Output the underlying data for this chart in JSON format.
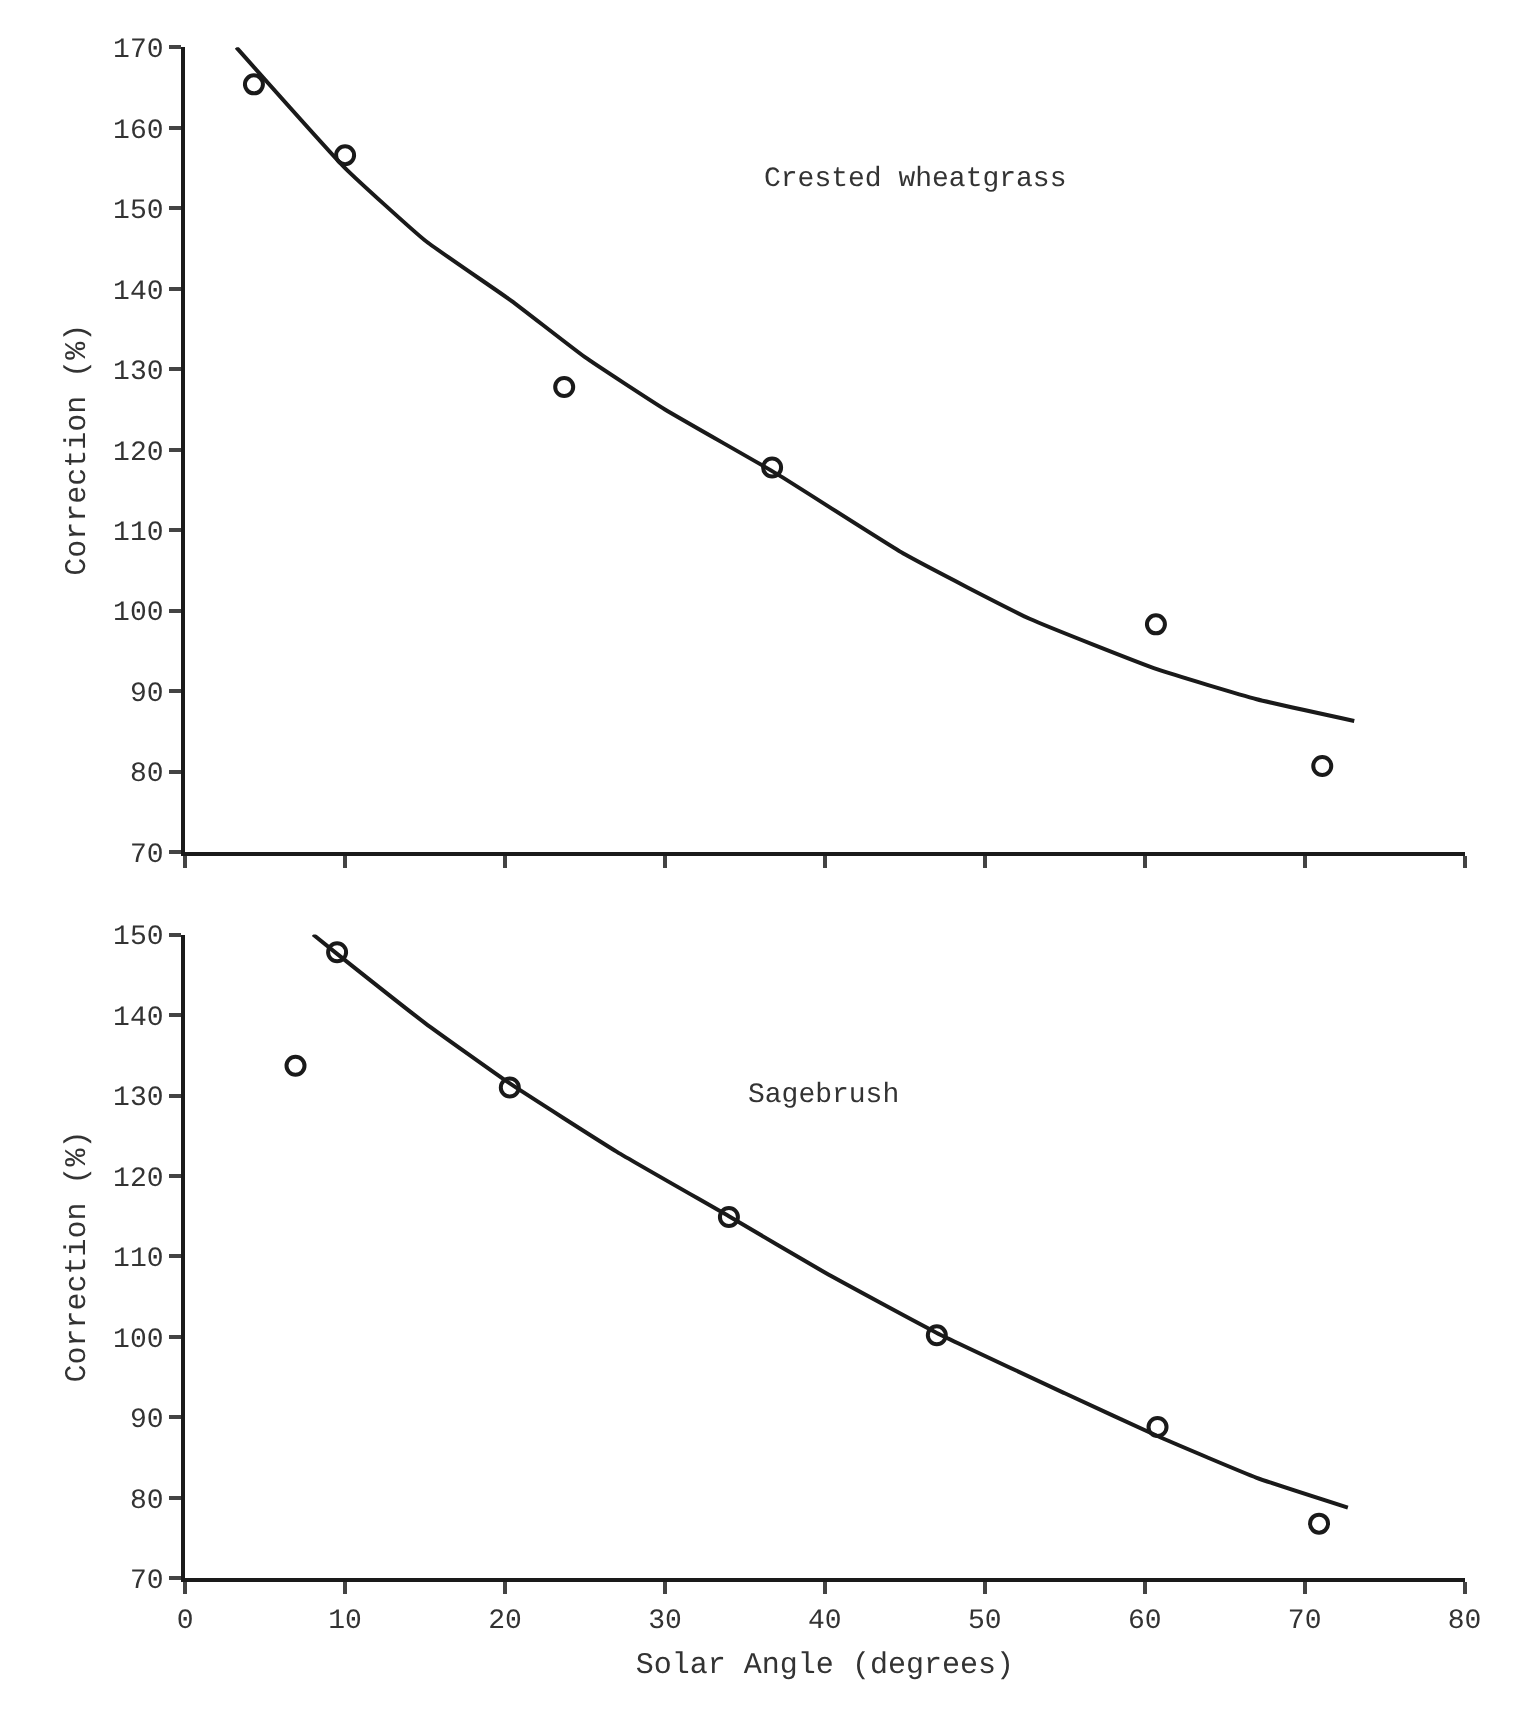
{
  "chart_data": [
    {
      "type": "scatter",
      "ylabel": "Correction (%)",
      "annotations": [
        "Crested wheatgrass"
      ],
      "marker": "circle",
      "tick_labels": "y",
      "xlim": [
        0,
        80
      ],
      "xticks": [
        {
          "value": 0,
          "label": null
        },
        {
          "value": 10,
          "label": null
        },
        {
          "value": 20,
          "label": null
        },
        {
          "value": 30,
          "label": null
        },
        {
          "value": 40,
          "label": null
        },
        {
          "value": 50,
          "label": null
        },
        {
          "value": 60,
          "label": null
        },
        {
          "value": 70,
          "label": null
        },
        {
          "value": 80,
          "label": null
        }
      ],
      "ylim": [
        70,
        170
      ],
      "yticks": [
        70,
        80,
        90,
        100,
        110,
        120,
        130,
        140,
        150,
        160,
        170
      ],
      "series": [
        {
          "color": "#1a1a1a",
          "x": [
            4.3,
            10.0,
            23.7,
            36.7,
            60.7,
            71.1
          ],
          "values": [
            165.4,
            156.6,
            127.8,
            117.8,
            98.3,
            80.7
          ]
        },
        {
          "type": "line",
          "color": "#1a1a1a",
          "marker": "none",
          "line_style": "solid",
          "x": [
            3.2,
            10,
            15,
            20.4,
            25,
            30,
            37,
            45,
            52.8,
            60.8,
            67,
            73.1
          ],
          "values": [
            170,
            155,
            146,
            138.5,
            131.5,
            125,
            117,
            107,
            99,
            92.7,
            89,
            86.3
          ]
        }
      ]
    },
    {
      "type": "scatter",
      "xlabel": "Solar Angle (degrees)",
      "ylabel": "Correction (%)",
      "annotations": [
        "Sagebrush"
      ],
      "marker": "circle",
      "xlim": [
        0,
        80
      ],
      "xticks": [
        0,
        10,
        20,
        30,
        40,
        50,
        60,
        70,
        80
      ],
      "ylim": [
        70,
        150
      ],
      "yticks": [
        70,
        80,
        90,
        100,
        110,
        120,
        130,
        140,
        150
      ],
      "series": [
        {
          "color": "#1a1a1a",
          "x": [
            6.9,
            9.5,
            20.3,
            34.0,
            47.0,
            60.8,
            70.9
          ],
          "values": [
            133.7,
            147.8,
            131.0,
            114.9,
            100.2,
            88.8,
            76.8
          ]
        },
        {
          "type": "line",
          "color": "#1a1a1a",
          "marker": "none",
          "line_style": "solid",
          "x": [
            8,
            9.5,
            15,
            20.3,
            27,
            34,
            40,
            47,
            55,
            61,
            67,
            72.7
          ],
          "values": [
            150,
            147.6,
            139,
            131.5,
            123,
            115,
            108,
            100.5,
            93,
            87.5,
            82.5,
            78.8
          ]
        }
      ]
    }
  ]
}
